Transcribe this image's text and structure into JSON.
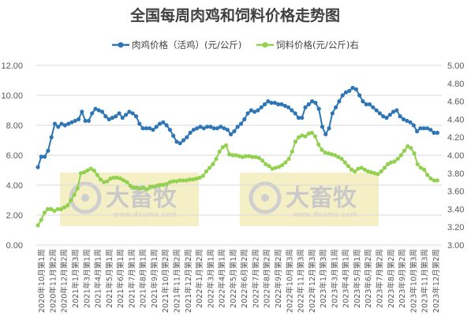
{
  "chart_data": {
    "type": "line",
    "title": "全国每周肉鸡和饲料价格走势图",
    "legend_position": "top",
    "grid": "horizontal",
    "watermark": {
      "brand": "大畜牧",
      "url": "www.dxumu.com"
    },
    "colors": {
      "meat": "#2e75b6",
      "feed": "#92d050",
      "watermark_box": "#f5efc6",
      "grid": "#d9d9d9"
    },
    "y_left": {
      "ylim": [
        0,
        12
      ],
      "ticks": [
        "0.00",
        "2.00",
        "4.00",
        "6.00",
        "8.00",
        "10.00",
        "12.00"
      ]
    },
    "y_right": {
      "ylim": [
        3.0,
        5.0
      ],
      "ticks": [
        "3.00",
        "3.20",
        "3.40",
        "3.60",
        "3.80",
        "4.00",
        "4.20",
        "4.40",
        "4.60",
        "4.80",
        "5.00"
      ]
    },
    "x_labels": [
      "2020年10月第1周",
      "2020年11月第2周",
      "2020年12月第2周",
      "2021年1月第3周",
      "2021年3月第1周",
      "2021年4月第1周",
      "2021年5月第1周",
      "2021年6月第1周",
      "2021年7月第1周",
      "2021年8月第1周",
      "2021年9月第1周",
      "2021年10月第2周",
      "2021年11月第2周",
      "2021年12月第2周",
      "2022年1月第2周",
      "2022年3月第1周",
      "2022年4月第1周",
      "2022年5月第1周",
      "2022年6月第2周",
      "2022年7月第2周",
      "2022年8月第2周",
      "2022年9月第2周",
      "2022年10月第3周",
      "2022年11月第3周",
      "2022年12月第3周",
      "2023年1月第3周",
      "2023年3月第1周",
      "2023年4月第1周",
      "2023年5月第1周",
      "2023年6月第2周",
      "2023年7月第2周",
      "2023年8月第2周",
      "2023年9月第2周",
      "2023年10月第3周",
      "2023年11月第3周",
      "2023年12月第2周"
    ],
    "series": [
      {
        "name": "肉鸡价格（活鸡）(元/公斤)",
        "axis": "left",
        "values": [
          5.2,
          5.9,
          5.9,
          6.3,
          7.2,
          8.1,
          7.9,
          8.1,
          8.0,
          8.1,
          8.2,
          8.3,
          8.4,
          8.9,
          8.3,
          8.3,
          8.8,
          9.1,
          9.0,
          8.9,
          8.6,
          8.4,
          8.5,
          8.6,
          8.8,
          8.5,
          8.7,
          8.9,
          8.8,
          8.6,
          8.1,
          7.8,
          7.8,
          7.8,
          7.7,
          7.9,
          8.1,
          8.2,
          8.0,
          7.7,
          7.3,
          6.9,
          6.8,
          7.0,
          7.2,
          7.5,
          7.7,
          7.8,
          7.9,
          7.8,
          7.9,
          7.9,
          7.8,
          7.8,
          7.9,
          7.8,
          7.7,
          7.4,
          7.6,
          7.9,
          8.1,
          8.4,
          8.8,
          9.0,
          8.9,
          9.0,
          9.2,
          9.4,
          9.6,
          9.5,
          9.5,
          9.4,
          9.4,
          9.3,
          9.2,
          9.0,
          8.8,
          8.5,
          8.5,
          9.2,
          9.4,
          9.6,
          9.5,
          9.1,
          7.9,
          7.4,
          7.8,
          8.8,
          9.2,
          9.6,
          10.0,
          10.2,
          10.3,
          10.5,
          10.4,
          10.0,
          9.6,
          9.4,
          9.4,
          9.2,
          9.0,
          8.8,
          8.6,
          8.5,
          8.7,
          8.9,
          9.0,
          8.6,
          8.4,
          8.3,
          8.2,
          8.0,
          7.6,
          7.8,
          7.8,
          7.8,
          7.7,
          7.5,
          7.5
        ]
      },
      {
        "name": "饲料价格(元/公斤)右",
        "axis": "right",
        "values": [
          3.22,
          3.28,
          3.36,
          3.4,
          3.4,
          3.38,
          3.4,
          3.4,
          3.42,
          3.44,
          3.5,
          3.56,
          3.63,
          3.8,
          3.81,
          3.83,
          3.85,
          3.83,
          3.78,
          3.73,
          3.7,
          3.71,
          3.74,
          3.75,
          3.75,
          3.74,
          3.72,
          3.7,
          3.66,
          3.64,
          3.64,
          3.63,
          3.64,
          3.62,
          3.65,
          3.65,
          3.66,
          3.67,
          3.67,
          3.68,
          3.7,
          3.71,
          3.71,
          3.72,
          3.72,
          3.72,
          3.73,
          3.73,
          3.74,
          3.75,
          3.77,
          3.82,
          3.86,
          3.9,
          3.96,
          4.04,
          4.09,
          4.11,
          4.01,
          4.0,
          4.0,
          3.99,
          3.98,
          3.99,
          3.99,
          3.98,
          3.98,
          3.97,
          3.94,
          3.9,
          3.88,
          3.85,
          3.86,
          3.87,
          3.89,
          3.92,
          3.96,
          4.04,
          4.15,
          4.2,
          4.22,
          4.21,
          4.24,
          4.25,
          4.21,
          4.12,
          4.06,
          4.03,
          4.02,
          4.01,
          4.0,
          3.98,
          3.96,
          3.92,
          3.88,
          3.84,
          3.82,
          3.85,
          3.86,
          3.84,
          3.82,
          3.81,
          3.8,
          3.79,
          3.82,
          3.86,
          3.9,
          3.92,
          3.93,
          3.96,
          4.0,
          4.05,
          4.1,
          4.08,
          4.02,
          3.9,
          3.86,
          3.84,
          3.78,
          3.74,
          3.72,
          3.72
        ]
      }
    ]
  }
}
